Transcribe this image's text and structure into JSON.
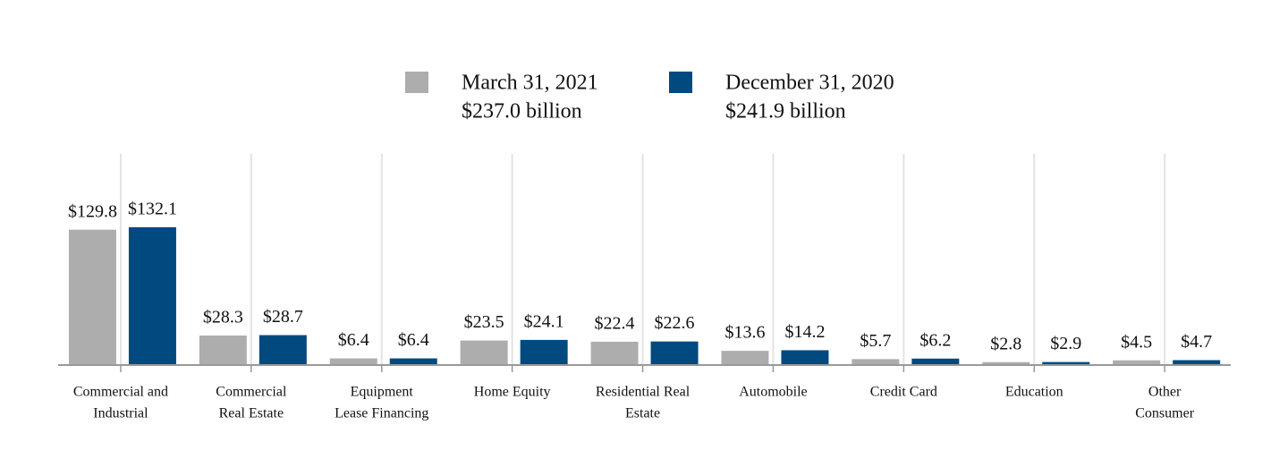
{
  "chart_data": {
    "type": "bar",
    "categories": [
      [
        "Commercial and",
        "Industrial"
      ],
      [
        "Commercial",
        "Real Estate"
      ],
      [
        "Equipment",
        "Lease Financing"
      ],
      [
        "Home Equity"
      ],
      [
        "Residential Real",
        "Estate"
      ],
      [
        "Automobile"
      ],
      [
        "Credit Card"
      ],
      [
        "Education"
      ],
      [
        "Other",
        "Consumer"
      ]
    ],
    "series": [
      {
        "name": "March 31, 2021",
        "total": "$237.0 billion",
        "color": "#adadad",
        "values": [
          129.8,
          28.3,
          6.4,
          23.5,
          22.4,
          13.6,
          5.7,
          2.8,
          4.5
        ],
        "value_labels": [
          "$129.8",
          "$28.3",
          "$6.4",
          "$23.5",
          "$22.4",
          "$13.6",
          "$5.7",
          "$2.8",
          "$4.5"
        ]
      },
      {
        "name": "December 31, 2020",
        "total": "$241.9 billion",
        "color": "#004a80",
        "values": [
          132.1,
          28.7,
          6.4,
          24.1,
          22.6,
          14.2,
          6.2,
          2.9,
          4.7
        ],
        "value_labels": [
          "$132.1",
          "$28.7",
          "$6.4",
          "$24.1",
          "$22.6",
          "$14.2",
          "$6.2",
          "$2.9",
          "$4.7"
        ]
      }
    ],
    "grid": true
  }
}
